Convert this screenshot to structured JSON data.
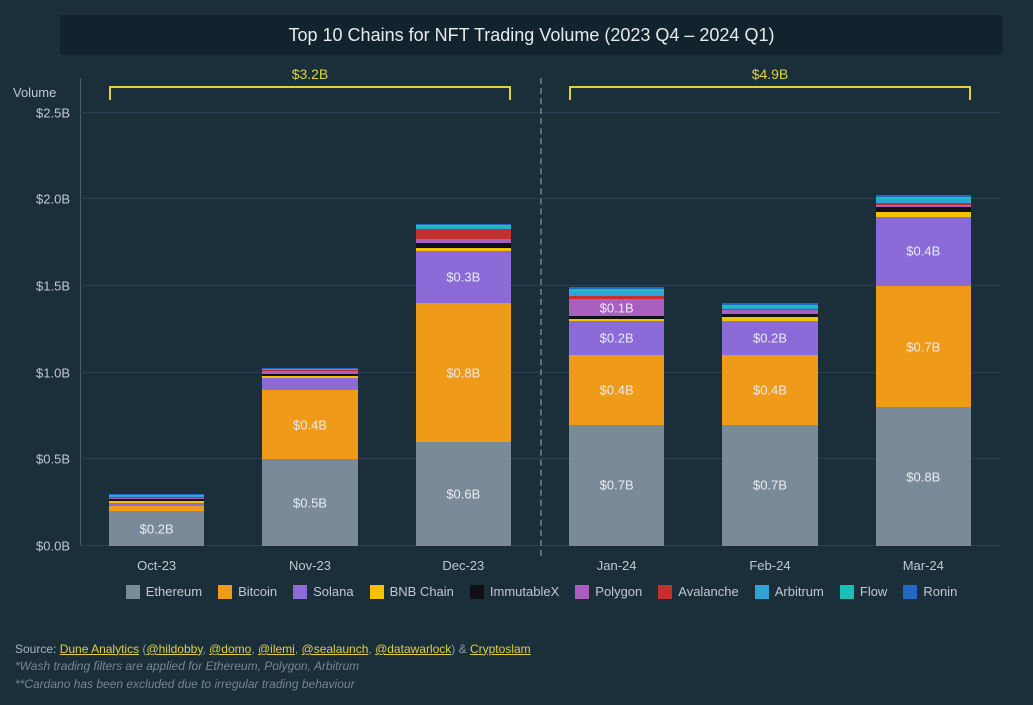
{
  "title": "Top 10 Chains for NFT Trading Volume (2023 Q4 – 2024 Q1)",
  "ylabel": "Volume",
  "chart": {
    "type": "stacked-bar",
    "background_color": "#1a2f3a",
    "grid_color": "#2a4050",
    "axis_color": "#4a6070",
    "ylim": [
      0,
      2.7
    ],
    "ytick_step": 0.5,
    "ytick_format_prefix": "$",
    "ytick_format_suffix": "B",
    "yticks": [
      "$0.0B",
      "$0.5B",
      "$1.0B",
      "$1.5B",
      "$2.0B",
      "$2.5B"
    ],
    "categories": [
      "Oct-23",
      "Nov-23",
      "Dec-23",
      "Jan-24",
      "Feb-24",
      "Mar-24"
    ],
    "divider_after_index": 2,
    "brackets": [
      {
        "from": 0,
        "to": 2,
        "label": "$3.2B"
      },
      {
        "from": 3,
        "to": 5,
        "label": "$4.9B"
      }
    ],
    "bracket_color": "#e0d040",
    "series": [
      {
        "name": "Ethereum",
        "color": "#7b8a99"
      },
      {
        "name": "Bitcoin",
        "color": "#f09a1a"
      },
      {
        "name": "Solana",
        "color": "#8a6bd8"
      },
      {
        "name": "BNB Chain",
        "color": "#f2c200"
      },
      {
        "name": "ImmutableX",
        "color": "#101016"
      },
      {
        "name": "Polygon",
        "color": "#a85fbf"
      },
      {
        "name": "Avalanche",
        "color": "#c4302b"
      },
      {
        "name": "Arbitrum",
        "color": "#2fa3d8"
      },
      {
        "name": "Flow",
        "color": "#18c0b5"
      },
      {
        "name": "Ronin",
        "color": "#2466c4"
      }
    ],
    "values": [
      {
        "Ethereum": {
          "v": 0.2,
          "label": "$0.2B"
        },
        "Bitcoin": {
          "v": 0.03
        },
        "Solana": {
          "v": 0.02
        },
        "BNB Chain": {
          "v": 0.01
        },
        "ImmutableX": {
          "v": 0.01
        },
        "Polygon": {
          "v": 0.01
        },
        "Avalanche": {
          "v": 0.005
        },
        "Arbitrum": {
          "v": 0.005
        },
        "Flow": {
          "v": 0.005
        },
        "Ronin": {
          "v": 0.005
        }
      },
      {
        "Ethereum": {
          "v": 0.5,
          "label": "$0.5B"
        },
        "Bitcoin": {
          "v": 0.4,
          "label": "$0.4B"
        },
        "Solana": {
          "v": 0.07
        },
        "BNB Chain": {
          "v": 0.01
        },
        "ImmutableX": {
          "v": 0.015
        },
        "Polygon": {
          "v": 0.015
        },
        "Avalanche": {
          "v": 0.005
        },
        "Arbitrum": {
          "v": 0.005
        },
        "Flow": {
          "v": 0.005
        },
        "Ronin": {
          "v": 0.005
        }
      },
      {
        "Ethereum": {
          "v": 0.6,
          "label": "$0.6B"
        },
        "Bitcoin": {
          "v": 0.8,
          "label": "$0.8B"
        },
        "Solana": {
          "v": 0.3,
          "label": "$0.3B"
        },
        "BNB Chain": {
          "v": 0.02
        },
        "ImmutableX": {
          "v": 0.03
        },
        "Polygon": {
          "v": 0.02
        },
        "Avalanche": {
          "v": 0.06
        },
        "Arbitrum": {
          "v": 0.01
        },
        "Flow": {
          "v": 0.01
        },
        "Ronin": {
          "v": 0.01
        }
      },
      {
        "Ethereum": {
          "v": 0.7,
          "label": "$0.7B"
        },
        "Bitcoin": {
          "v": 0.4,
          "label": "$0.4B"
        },
        "Solana": {
          "v": 0.2,
          "label": "$0.2B"
        },
        "BNB Chain": {
          "v": 0.01
        },
        "ImmutableX": {
          "v": 0.015
        },
        "Polygon": {
          "v": 0.1,
          "label": "$0.1B"
        },
        "Avalanche": {
          "v": 0.02
        },
        "Arbitrum": {
          "v": 0.02
        },
        "Flow": {
          "v": 0.02
        },
        "Ronin": {
          "v": 0.01
        }
      },
      {
        "Ethereum": {
          "v": 0.7,
          "label": "$0.7B"
        },
        "Bitcoin": {
          "v": 0.4,
          "label": "$0.4B"
        },
        "Solana": {
          "v": 0.2,
          "label": "$0.2B"
        },
        "BNB Chain": {
          "v": 0.02
        },
        "ImmutableX": {
          "v": 0.02
        },
        "Polygon": {
          "v": 0.02
        },
        "Avalanche": {
          "v": 0.01
        },
        "Arbitrum": {
          "v": 0.01
        },
        "Flow": {
          "v": 0.01
        },
        "Ronin": {
          "v": 0.01
        }
      },
      {
        "Ethereum": {
          "v": 0.8,
          "label": "$0.8B"
        },
        "Bitcoin": {
          "v": 0.7,
          "label": "$0.7B"
        },
        "Solana": {
          "v": 0.4,
          "label": "$0.4B"
        },
        "BNB Chain": {
          "v": 0.03
        },
        "ImmutableX": {
          "v": 0.025
        },
        "Polygon": {
          "v": 0.015
        },
        "Avalanche": {
          "v": 0.01
        },
        "Arbitrum": {
          "v": 0.02
        },
        "Flow": {
          "v": 0.015
        },
        "Ronin": {
          "v": 0.01
        }
      }
    ]
  },
  "footer": {
    "source_label": "Source:",
    "source_prefix": "Dune Analytics",
    "handles": [
      "@hildobby",
      "@domo",
      "@ilemi",
      "@sealaunch",
      "@datawarlock"
    ],
    "source_suffix_amp": "&",
    "source_suffix_link": "Cryptoslam",
    "note1": "*Wash trading filters are applied for Ethereum, Polygon, Arbitrum",
    "note2": "**Cardano has been excluded due to irregular trading behaviour"
  }
}
